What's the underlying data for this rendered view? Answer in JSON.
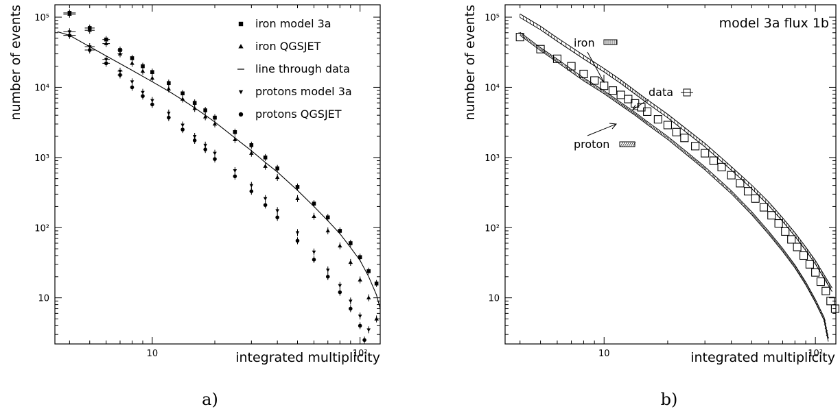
{
  "chart_data": [
    {
      "type": "scatter",
      "panel_label": "a)",
      "xlabel": "integrated multiplicity",
      "ylabel": "number of events",
      "x_scale": "log",
      "y_scale": "log",
      "xlim": [
        3.4,
        125
      ],
      "ylim": [
        2.2,
        150000
      ],
      "grid": false,
      "legend_position": "top-right",
      "x_ticks": [
        {
          "value": 10,
          "label": "10"
        },
        {
          "value": 100,
          "label": "10²"
        }
      ],
      "y_ticks": [
        {
          "value": 10,
          "label": "10"
        },
        {
          "value": 100,
          "label": "10²"
        },
        {
          "value": 1000,
          "label": "10³"
        },
        {
          "value": 10000,
          "label": "10⁴"
        },
        {
          "value": 100000,
          "label": "10⁵"
        }
      ],
      "series": [
        {
          "name": "iron model 3a",
          "marker": "square",
          "x": [
            4,
            5,
            6,
            7,
            8,
            9,
            10,
            12,
            14,
            16,
            18,
            20,
            25,
            30,
            35,
            40,
            50,
            60,
            70,
            80,
            90,
            100,
            110,
            120
          ],
          "y": [
            115000,
            70000,
            48000,
            34000,
            26000,
            20000,
            16500,
            11500,
            8200,
            6000,
            4700,
            3700,
            2300,
            1500,
            1000,
            700,
            380,
            220,
            140,
            90,
            60,
            38,
            24,
            16
          ]
        },
        {
          "name": "iron QGSJET",
          "marker": "triangle-up",
          "x": [
            4,
            5,
            6,
            7,
            8,
            9,
            10,
            12,
            14,
            16,
            18,
            20,
            25,
            30,
            35,
            40,
            50,
            60,
            70,
            80,
            90,
            100,
            110,
            120
          ],
          "y": [
            110000,
            65000,
            42000,
            30000,
            22000,
            17000,
            13500,
            9500,
            6800,
            5000,
            3800,
            3000,
            1800,
            1150,
            750,
            520,
            260,
            145,
            90,
            55,
            32,
            18,
            10,
            5
          ]
        },
        {
          "name": "line through data",
          "marker": "line",
          "x": [
            3.5,
            4,
            5,
            6,
            8,
            10,
            12,
            14,
            16,
            18,
            20,
            25,
            30,
            35,
            40,
            50,
            60,
            70,
            80,
            90,
            100,
            110,
            120,
            125
          ],
          "y": [
            62000,
            55000,
            38000,
            28000,
            17500,
            12000,
            8800,
            6600,
            5100,
            4000,
            3200,
            1900,
            1250,
            850,
            620,
            340,
            200,
            125,
            82,
            52,
            34,
            20,
            11,
            7
          ]
        },
        {
          "name": "protons model 3a",
          "marker": "triangle-down",
          "x": [
            4,
            5,
            6,
            7,
            8,
            9,
            10,
            12,
            14,
            16,
            18,
            20,
            25,
            30,
            35,
            40,
            50,
            60,
            70,
            80,
            90,
            100,
            110
          ],
          "y": [
            62000,
            38000,
            25000,
            17000,
            12000,
            8500,
            6500,
            4300,
            2900,
            2000,
            1500,
            1150,
            650,
            400,
            260,
            175,
            85,
            45,
            25,
            15,
            9,
            5.5,
            3.5
          ]
        },
        {
          "name": "protons QGSJET",
          "marker": "circle",
          "x": [
            4,
            5,
            6,
            7,
            8,
            9,
            10,
            12,
            14,
            16,
            18,
            20,
            25,
            30,
            35,
            40,
            50,
            60,
            70,
            80,
            90,
            100,
            105
          ],
          "y": [
            55000,
            34000,
            22000,
            15000,
            10000,
            7500,
            5700,
            3700,
            2500,
            1750,
            1300,
            950,
            540,
            330,
            210,
            140,
            65,
            35,
            20,
            12,
            7,
            4,
            2.5
          ]
        }
      ]
    },
    {
      "type": "line",
      "panel_label": "b)",
      "title": "model 3a flux 1b",
      "xlabel": "integrated multiplicity",
      "ylabel": "number of events",
      "x_scale": "log",
      "y_scale": "log",
      "xlim": [
        3.4,
        125
      ],
      "ylim": [
        2.2,
        150000
      ],
      "grid": false,
      "x_ticks": [
        {
          "value": 10,
          "label": "10"
        },
        {
          "value": 100,
          "label": "10²"
        }
      ],
      "y_ticks": [
        {
          "value": 10,
          "label": "10"
        },
        {
          "value": 100,
          "label": "10²"
        },
        {
          "value": 1000,
          "label": "10³"
        },
        {
          "value": 10000,
          "label": "10⁴"
        },
        {
          "value": 100000,
          "label": "10⁵"
        }
      ],
      "annotations": [
        {
          "label": "iron",
          "symbol": "hatch-band",
          "x": 10,
          "y": 55000
        },
        {
          "label": "data",
          "symbol": "open-square",
          "x": 21,
          "y": 11000
        },
        {
          "label": "proton",
          "symbol": "hatch-band-diagonal",
          "x": 9,
          "y": 1800
        }
      ],
      "series": [
        {
          "name": "iron",
          "marker": "band",
          "x": [
            4,
            5,
            6,
            8,
            10,
            12,
            14,
            16,
            20,
            25,
            30,
            40,
            50,
            60,
            70,
            80,
            90,
            100,
            110,
            120
          ],
          "y": [
            105000,
            70000,
            48000,
            27000,
            17500,
            12000,
            8500,
            6300,
            3900,
            2300,
            1500,
            700,
            380,
            220,
            130,
            80,
            50,
            32,
            20,
            13
          ]
        },
        {
          "name": "data",
          "marker": "open-square",
          "x": [
            4,
            5,
            6,
            7,
            8,
            9,
            10,
            11,
            12,
            13,
            14,
            15,
            16,
            18,
            20,
            22,
            24,
            27,
            30,
            33,
            36,
            40,
            44,
            48,
            52,
            57,
            62,
            67,
            72,
            77,
            82,
            88,
            94,
            100,
            106,
            112,
            118,
            124
          ],
          "y": [
            52000,
            35000,
            25500,
            20000,
            15500,
            12500,
            10500,
            9000,
            7800,
            6800,
            5900,
            5200,
            4500,
            3500,
            2900,
            2300,
            1900,
            1450,
            1150,
            900,
            730,
            560,
            430,
            330,
            260,
            195,
            150,
            115,
            88,
            68,
            53,
            40,
            30,
            23,
            17,
            12.5,
            9,
            7
          ]
        },
        {
          "name": "proton",
          "marker": "band-diagonal",
          "x": [
            4,
            5,
            6,
            8,
            10,
            12,
            14,
            16,
            20,
            25,
            30,
            40,
            50,
            60,
            70,
            80,
            90,
            100,
            110,
            115
          ],
          "y": [
            58000,
            35000,
            24000,
            13000,
            8500,
            5800,
            4200,
            3100,
            1900,
            1100,
            700,
            320,
            160,
            85,
            48,
            28,
            16,
            9,
            5,
            2.5
          ]
        }
      ]
    }
  ]
}
